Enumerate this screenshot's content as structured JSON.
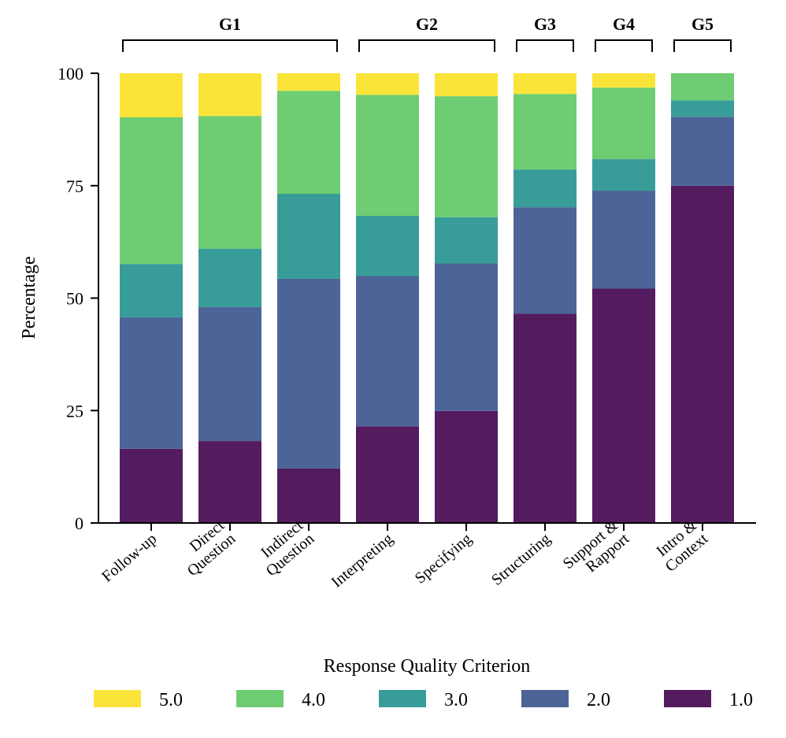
{
  "chart_data": {
    "type": "bar",
    "stacked": true,
    "title": "",
    "ylabel": "Percentage",
    "xlabel": "",
    "ylim": [
      0,
      100
    ],
    "yticks": [
      0,
      25,
      50,
      75,
      100
    ],
    "categories": [
      [
        "Follow-up"
      ],
      [
        "Direct",
        "Question"
      ],
      [
        "Indirect",
        "Question"
      ],
      [
        "Interpreting"
      ],
      [
        "Specifying"
      ],
      [
        "Structuring"
      ],
      [
        "Support &",
        "Rapport"
      ],
      [
        "Intro &",
        "Context"
      ]
    ],
    "groups": [
      {
        "label": "G1",
        "first": 0,
        "last": 2
      },
      {
        "label": "G2",
        "first": 3,
        "last": 4
      },
      {
        "label": "G3",
        "first": 5,
        "last": 5
      },
      {
        "label": "G4",
        "first": 6,
        "last": 6
      },
      {
        "label": "G5",
        "first": 7,
        "last": 7
      }
    ],
    "series": [
      {
        "name": "1.0",
        "color": "#541b5f",
        "values": [
          16.5,
          18.2,
          12.1,
          21.5,
          24.9,
          46.5,
          52.1,
          75.0
        ]
      },
      {
        "name": "2.0",
        "color": "#4c6497",
        "values": [
          29.2,
          29.8,
          42.2,
          33.4,
          32.8,
          23.7,
          21.8,
          15.3
        ]
      },
      {
        "name": "3.0",
        "color": "#389d98",
        "values": [
          11.9,
          13.0,
          18.9,
          13.4,
          10.3,
          8.4,
          7.0,
          3.7
        ]
      },
      {
        "name": "4.0",
        "color": "#6ecd72",
        "values": [
          32.6,
          29.5,
          22.9,
          26.9,
          26.9,
          16.8,
          15.9,
          6.0
        ]
      },
      {
        "name": "5.0",
        "color": "#fbe43a",
        "values": [
          9.8,
          9.5,
          3.9,
          4.8,
          5.1,
          4.6,
          3.2,
          0.0
        ]
      }
    ],
    "legend_title": "Response Quality Criterion",
    "legend_order": [
      "5.0",
      "4.0",
      "3.0",
      "2.0",
      "1.0"
    ],
    "legend_position": "bottom"
  }
}
